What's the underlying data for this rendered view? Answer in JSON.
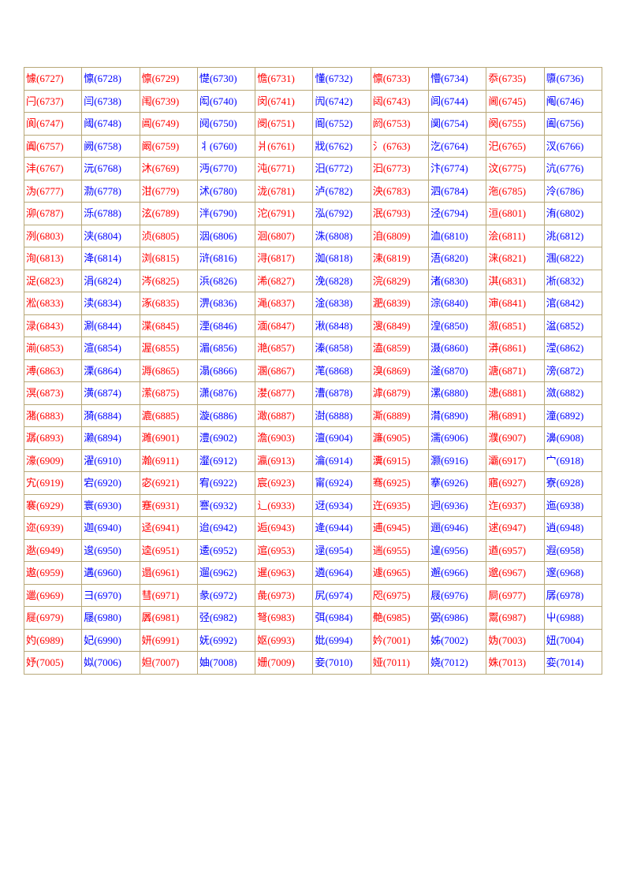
{
  "table": {
    "border_color": "#b8a878",
    "background_color": "#ffffff",
    "font_size": 13,
    "columns": 10,
    "colors": {
      "red": "#ff0000",
      "blue": "#0000ff"
    },
    "rows": [
      [
        [
          "懅",
          "6727",
          "r"
        ],
        [
          "懔",
          "6728",
          "b"
        ],
        [
          "懔",
          "6729",
          "r"
        ],
        [
          "憷",
          "6730",
          "b"
        ],
        [
          "憺",
          "6731",
          "r"
        ],
        [
          "懂",
          "6732",
          "b"
        ],
        [
          "懔",
          "6733",
          "r"
        ],
        [
          "懵",
          "6734",
          "b"
        ],
        [
          "忝",
          "6735",
          "r"
        ],
        [
          "隳",
          "6736",
          "b"
        ]
      ],
      [
        [
          "闩",
          "6737",
          "r"
        ],
        [
          "闫",
          "6738",
          "b"
        ],
        [
          "闱",
          "6739",
          "r"
        ],
        [
          "闳",
          "6740",
          "b"
        ],
        [
          "闵",
          "6741",
          "r"
        ],
        [
          "闶",
          "6742",
          "b"
        ],
        [
          "闼",
          "6743",
          "r"
        ],
        [
          "闾",
          "6744",
          "b"
        ],
        [
          "阃",
          "6745",
          "r"
        ],
        [
          "阄",
          "6746",
          "b"
        ]
      ],
      [
        [
          "阆",
          "6747",
          "r"
        ],
        [
          "阈",
          "6748",
          "b"
        ],
        [
          "阊",
          "6749",
          "r"
        ],
        [
          "阋",
          "6750",
          "b"
        ],
        [
          "阌",
          "6751",
          "r"
        ],
        [
          "阍",
          "6752",
          "b"
        ],
        [
          "阏",
          "6753",
          "r"
        ],
        [
          "阒",
          "6754",
          "b"
        ],
        [
          "阕",
          "6755",
          "r"
        ],
        [
          "阖",
          "6756",
          "b"
        ]
      ],
      [
        [
          "阗",
          "6757",
          "r"
        ],
        [
          "阙",
          "6758",
          "b"
        ],
        [
          "阚",
          "6759",
          "r"
        ],
        [
          "丬",
          "6760",
          "b"
        ],
        [
          "爿",
          "6761",
          "r"
        ],
        [
          "戕",
          "6762",
          "b"
        ],
        [
          "氵",
          "6763",
          "r"
        ],
        [
          "汔",
          "6764",
          "b"
        ],
        [
          "汜",
          "6765",
          "r"
        ],
        [
          "汊",
          "6766",
          "b"
        ]
      ],
      [
        [
          "沣",
          "6767",
          "r"
        ],
        [
          "沅",
          "6768",
          "b"
        ],
        [
          "沐",
          "6769",
          "r"
        ],
        [
          "沔",
          "6770",
          "b"
        ],
        [
          "沌",
          "6771",
          "r"
        ],
        [
          "汨",
          "6772",
          "b"
        ],
        [
          "汩",
          "6773",
          "r"
        ],
        [
          "汴",
          "6774",
          "b"
        ],
        [
          "汶",
          "6775",
          "r"
        ],
        [
          "沆",
          "6776",
          "b"
        ]
      ],
      [
        [
          "沩",
          "6777",
          "r"
        ],
        [
          "泐",
          "6778",
          "b"
        ],
        [
          "泔",
          "6779",
          "r"
        ],
        [
          "沭",
          "6780",
          "b"
        ],
        [
          "泷",
          "6781",
          "r"
        ],
        [
          "泸",
          "6782",
          "b"
        ],
        [
          "泱",
          "6783",
          "r"
        ],
        [
          "泗",
          "6784",
          "b"
        ],
        [
          "沲",
          "6785",
          "r"
        ],
        [
          "泠",
          "6786",
          "b"
        ]
      ],
      [
        [
          "泖",
          "6787",
          "r"
        ],
        [
          "泺",
          "6788",
          "b"
        ],
        [
          "泫",
          "6789",
          "r"
        ],
        [
          "泮",
          "6790",
          "b"
        ],
        [
          "沱",
          "6791",
          "r"
        ],
        [
          "泓",
          "6792",
          "b"
        ],
        [
          "泯",
          "6793",
          "r"
        ],
        [
          "泾",
          "6794",
          "b"
        ],
        [
          "洹",
          "6801",
          "r"
        ],
        [
          "洧",
          "6802",
          "b"
        ]
      ],
      [
        [
          "洌",
          "6803",
          "r"
        ],
        [
          "浃",
          "6804",
          "b"
        ],
        [
          "浈",
          "6805",
          "r"
        ],
        [
          "洇",
          "6806",
          "b"
        ],
        [
          "洄",
          "6807",
          "r"
        ],
        [
          "洙",
          "6808",
          "b"
        ],
        [
          "洎",
          "6809",
          "r"
        ],
        [
          "洫",
          "6810",
          "b"
        ],
        [
          "浍",
          "6811",
          "r"
        ],
        [
          "洮",
          "6812",
          "b"
        ]
      ],
      [
        [
          "洵",
          "6813",
          "r"
        ],
        [
          "洚",
          "6814",
          "b"
        ],
        [
          "浏",
          "6815",
          "r"
        ],
        [
          "浒",
          "6816",
          "b"
        ],
        [
          "浔",
          "6817",
          "r"
        ],
        [
          "洳",
          "6818",
          "b"
        ],
        [
          "涑",
          "6819",
          "r"
        ],
        [
          "浯",
          "6820",
          "b"
        ],
        [
          "涞",
          "6821",
          "r"
        ],
        [
          "涠",
          "6822",
          "b"
        ]
      ],
      [
        [
          "浞",
          "6823",
          "r"
        ],
        [
          "涓",
          "6824",
          "b"
        ],
        [
          "涔",
          "6825",
          "r"
        ],
        [
          "浜",
          "6826",
          "b"
        ],
        [
          "浠",
          "6827",
          "r"
        ],
        [
          "浼",
          "6828",
          "b"
        ],
        [
          "浣",
          "6829",
          "r"
        ],
        [
          "渚",
          "6830",
          "b"
        ],
        [
          "淇",
          "6831",
          "r"
        ],
        [
          "淅",
          "6832",
          "b"
        ]
      ],
      [
        [
          "淞",
          "6833",
          "r"
        ],
        [
          "渎",
          "6834",
          "b"
        ],
        [
          "涿",
          "6835",
          "r"
        ],
        [
          "淠",
          "6836",
          "b"
        ],
        [
          "渑",
          "6837",
          "r"
        ],
        [
          "淦",
          "6838",
          "b"
        ],
        [
          "淝",
          "6839",
          "r"
        ],
        [
          "淙",
          "6840",
          "b"
        ],
        [
          "渖",
          "6841",
          "r"
        ],
        [
          "涫",
          "6842",
          "b"
        ]
      ],
      [
        [
          "渌",
          "6843",
          "r"
        ],
        [
          "涮",
          "6844",
          "b"
        ],
        [
          "渫",
          "6845",
          "r"
        ],
        [
          "湮",
          "6846",
          "b"
        ],
        [
          "湎",
          "6847",
          "r"
        ],
        [
          "湫",
          "6848",
          "b"
        ],
        [
          "溲",
          "6849",
          "r"
        ],
        [
          "湟",
          "6850",
          "b"
        ],
        [
          "溆",
          "6851",
          "r"
        ],
        [
          "湓",
          "6852",
          "b"
        ]
      ],
      [
        [
          "湔",
          "6853",
          "r"
        ],
        [
          "渲",
          "6854",
          "b"
        ],
        [
          "渥",
          "6855",
          "r"
        ],
        [
          "湄",
          "6856",
          "b"
        ],
        [
          "滟",
          "6857",
          "r"
        ],
        [
          "溱",
          "6858",
          "b"
        ],
        [
          "溘",
          "6859",
          "r"
        ],
        [
          "滠",
          "6860",
          "b"
        ],
        [
          "漭",
          "6861",
          "r"
        ],
        [
          "滢",
          "6862",
          "b"
        ]
      ],
      [
        [
          "溥",
          "6863",
          "r"
        ],
        [
          "溧",
          "6864",
          "b"
        ],
        [
          "溽",
          "6865",
          "r"
        ],
        [
          "溻",
          "6866",
          "b"
        ],
        [
          "溷",
          "6867",
          "r"
        ],
        [
          "滗",
          "6868",
          "b"
        ],
        [
          "溴",
          "6869",
          "r"
        ],
        [
          "滏",
          "6870",
          "b"
        ],
        [
          "溏",
          "6871",
          "r"
        ],
        [
          "滂",
          "6872",
          "b"
        ]
      ],
      [
        [
          "溟",
          "6873",
          "r"
        ],
        [
          "潢",
          "6874",
          "b"
        ],
        [
          "潆",
          "6875",
          "r"
        ],
        [
          "潇",
          "6876",
          "b"
        ],
        [
          "漤",
          "6877",
          "r"
        ],
        [
          "漕",
          "6878",
          "b"
        ],
        [
          "滹",
          "6879",
          "r"
        ],
        [
          "漯",
          "6880",
          "b"
        ],
        [
          "漶",
          "6881",
          "r"
        ],
        [
          "潋",
          "6882",
          "b"
        ]
      ],
      [
        [
          "潴",
          "6883",
          "r"
        ],
        [
          "漪",
          "6884",
          "b"
        ],
        [
          "漉",
          "6885",
          "r"
        ],
        [
          "漩",
          "6886",
          "b"
        ],
        [
          "澉",
          "6887",
          "r"
        ],
        [
          "澍",
          "6888",
          "b"
        ],
        [
          "澌",
          "6889",
          "r"
        ],
        [
          "潸",
          "6890",
          "b"
        ],
        [
          "潲",
          "6891",
          "r"
        ],
        [
          "潼",
          "6892",
          "b"
        ]
      ],
      [
        [
          "潺",
          "6893",
          "r"
        ],
        [
          "濑",
          "6894",
          "b"
        ],
        [
          "濉",
          "6901",
          "r"
        ],
        [
          "澧",
          "6902",
          "b"
        ],
        [
          "澹",
          "6903",
          "r"
        ],
        [
          "澶",
          "6904",
          "b"
        ],
        [
          "濂",
          "6905",
          "r"
        ],
        [
          "濡",
          "6906",
          "b"
        ],
        [
          "濮",
          "6907",
          "r"
        ],
        [
          "濞",
          "6908",
          "b"
        ]
      ],
      [
        [
          "濠",
          "6909",
          "r"
        ],
        [
          "濯",
          "6910",
          "b"
        ],
        [
          "瀚",
          "6911",
          "r"
        ],
        [
          "瀣",
          "6912",
          "b"
        ],
        [
          "瀛",
          "6913",
          "r"
        ],
        [
          "瀹",
          "6914",
          "b"
        ],
        [
          "瀵",
          "6915",
          "r"
        ],
        [
          "灏",
          "6916",
          "b"
        ],
        [
          "灞",
          "6917",
          "r"
        ],
        [
          "宀",
          "6918",
          "b"
        ]
      ],
      [
        [
          "宄",
          "6919",
          "r"
        ],
        [
          "宕",
          "6920",
          "b"
        ],
        [
          "宓",
          "6921",
          "r"
        ],
        [
          "宥",
          "6922",
          "b"
        ],
        [
          "宸",
          "6923",
          "r"
        ],
        [
          "甯",
          "6924",
          "b"
        ],
        [
          "骞",
          "6925",
          "r"
        ],
        [
          "搴",
          "6926",
          "b"
        ],
        [
          "寤",
          "6927",
          "r"
        ],
        [
          "寮",
          "6928",
          "b"
        ]
      ],
      [
        [
          "褰",
          "6929",
          "r"
        ],
        [
          "寰",
          "6930",
          "b"
        ],
        [
          "蹇",
          "6931",
          "r"
        ],
        [
          "謇",
          "6932",
          "b"
        ],
        [
          "辶",
          "6933",
          "r"
        ],
        [
          "迓",
          "6934",
          "b"
        ],
        [
          "迕",
          "6935",
          "r"
        ],
        [
          "迥",
          "6936",
          "b"
        ],
        [
          "迮",
          "6937",
          "r"
        ],
        [
          "迤",
          "6938",
          "b"
        ]
      ],
      [
        [
          "迩",
          "6939",
          "r"
        ],
        [
          "迦",
          "6940",
          "b"
        ],
        [
          "迳",
          "6941",
          "r"
        ],
        [
          "迨",
          "6942",
          "b"
        ],
        [
          "逅",
          "6943",
          "r"
        ],
        [
          "逄",
          "6944",
          "b"
        ],
        [
          "逋",
          "6945",
          "r"
        ],
        [
          "逦",
          "6946",
          "b"
        ],
        [
          "逑",
          "6947",
          "r"
        ],
        [
          "逍",
          "6948",
          "b"
        ]
      ],
      [
        [
          "逖",
          "6949",
          "r"
        ],
        [
          "逡",
          "6950",
          "b"
        ],
        [
          "逵",
          "6951",
          "r"
        ],
        [
          "逶",
          "6952",
          "b"
        ],
        [
          "逭",
          "6953",
          "r"
        ],
        [
          "逯",
          "6954",
          "b"
        ],
        [
          "遄",
          "6955",
          "r"
        ],
        [
          "遑",
          "6956",
          "b"
        ],
        [
          "遒",
          "6957",
          "r"
        ],
        [
          "遐",
          "6958",
          "b"
        ]
      ],
      [
        [
          "遨",
          "6959",
          "r"
        ],
        [
          "遘",
          "6960",
          "b"
        ],
        [
          "遢",
          "6961",
          "r"
        ],
        [
          "遛",
          "6962",
          "b"
        ],
        [
          "暹",
          "6963",
          "r"
        ],
        [
          "遴",
          "6964",
          "b"
        ],
        [
          "遽",
          "6965",
          "r"
        ],
        [
          "邂",
          "6966",
          "b"
        ],
        [
          "邈",
          "6967",
          "r"
        ],
        [
          "邃",
          "6968",
          "b"
        ]
      ],
      [
        [
          "邋",
          "6969",
          "r"
        ],
        [
          "彐",
          "6970",
          "b"
        ],
        [
          "彗",
          "6971",
          "r"
        ],
        [
          "彖",
          "6972",
          "b"
        ],
        [
          "彘",
          "6973",
          "r"
        ],
        [
          "尻",
          "6974",
          "b"
        ],
        [
          "咫",
          "6975",
          "r"
        ],
        [
          "屐",
          "6976",
          "b"
        ],
        [
          "屙",
          "6977",
          "r"
        ],
        [
          "孱",
          "6978",
          "b"
        ]
      ],
      [
        [
          "屣",
          "6979",
          "r"
        ],
        [
          "屦",
          "6980",
          "b"
        ],
        [
          "羼",
          "6981",
          "r"
        ],
        [
          "弪",
          "6982",
          "b"
        ],
        [
          "弩",
          "6983",
          "r"
        ],
        [
          "弭",
          "6984",
          "b"
        ],
        [
          "艴",
          "6985",
          "r"
        ],
        [
          "弼",
          "6986",
          "b"
        ],
        [
          "鬻",
          "6987",
          "r"
        ],
        [
          "屮",
          "6988",
          "b"
        ]
      ],
      [
        [
          "妁",
          "6989",
          "r"
        ],
        [
          "妃",
          "6990",
          "b"
        ],
        [
          "妍",
          "6991",
          "r"
        ],
        [
          "妩",
          "6992",
          "b"
        ],
        [
          "妪",
          "6993",
          "r"
        ],
        [
          "妣",
          "6994",
          "b"
        ],
        [
          "妗",
          "7001",
          "r"
        ],
        [
          "姊",
          "7002",
          "b"
        ],
        [
          "妫",
          "7003",
          "r"
        ],
        [
          "妞",
          "7004",
          "b"
        ]
      ],
      [
        [
          "妤",
          "7005",
          "r"
        ],
        [
          "姒",
          "7006",
          "b"
        ],
        [
          "妲",
          "7007",
          "r"
        ],
        [
          "妯",
          "7008",
          "b"
        ],
        [
          "姗",
          "7009",
          "r"
        ],
        [
          "妾",
          "7010",
          "b"
        ],
        [
          "娅",
          "7011",
          "r"
        ],
        [
          "娆",
          "7012",
          "b"
        ],
        [
          "姝",
          "7013",
          "r"
        ],
        [
          "娈",
          "7014",
          "b"
        ]
      ]
    ]
  }
}
